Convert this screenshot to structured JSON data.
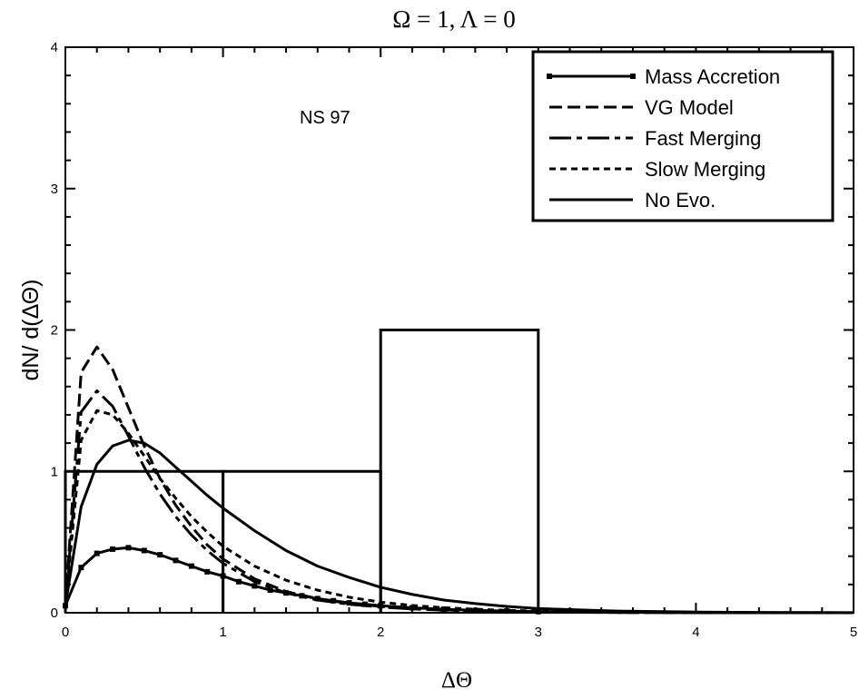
{
  "chart_data": {
    "type": "line",
    "title": "Ω = 1, Λ = 0",
    "xlabel": "ΔΘ",
    "ylabel": "dN/ d(ΔΘ)",
    "annotation": "NS 97",
    "xlim": [
      0,
      5
    ],
    "ylim": [
      0,
      4
    ],
    "x_ticks": [
      "0",
      "1",
      "2",
      "3",
      "4",
      "5"
    ],
    "y_ticks": [
      "0",
      "1",
      "2",
      "3",
      "4"
    ],
    "grid": false,
    "legend_position": "top-right",
    "series": [
      {
        "name": "Mass Accretion",
        "style": "solid-square-markers",
        "x": [
          0,
          0.1,
          0.2,
          0.3,
          0.4,
          0.5,
          0.6,
          0.7,
          0.8,
          0.9,
          1.0,
          1.1,
          1.2,
          1.3,
          1.4,
          1.5,
          1.6,
          1.7,
          1.8,
          1.9,
          2.0,
          2.2,
          2.4,
          2.6,
          2.8,
          3.0,
          3.5,
          4.0,
          4.5,
          5.0
        ],
        "y": [
          0.05,
          0.32,
          0.42,
          0.45,
          0.46,
          0.44,
          0.41,
          0.37,
          0.33,
          0.29,
          0.26,
          0.22,
          0.19,
          0.16,
          0.14,
          0.12,
          0.1,
          0.085,
          0.07,
          0.06,
          0.05,
          0.035,
          0.025,
          0.017,
          0.012,
          0.008,
          0.003,
          0.001,
          0.0005,
          0.0002
        ]
      },
      {
        "name": "VG Model",
        "style": "dashed",
        "x": [
          0,
          0.1,
          0.2,
          0.3,
          0.4,
          0.5,
          0.6,
          0.7,
          0.8,
          0.9,
          1.0,
          1.2,
          1.4,
          1.6,
          1.8,
          2.0,
          2.2,
          2.4,
          2.6,
          2.8,
          3.0,
          3.5,
          4.0,
          4.5,
          5.0
        ],
        "y": [
          0.05,
          1.7,
          1.88,
          1.72,
          1.45,
          1.18,
          0.95,
          0.76,
          0.61,
          0.48,
          0.38,
          0.24,
          0.15,
          0.1,
          0.065,
          0.045,
          0.03,
          0.02,
          0.013,
          0.009,
          0.006,
          0.002,
          0.001,
          0.0003,
          0.0001
        ]
      },
      {
        "name": "Fast Merging",
        "style": "dash-dot",
        "x": [
          0,
          0.1,
          0.2,
          0.3,
          0.4,
          0.5,
          0.6,
          0.7,
          0.8,
          0.9,
          1.0,
          1.2,
          1.4,
          1.6,
          1.8,
          2.0,
          2.2,
          2.4,
          2.6,
          2.8,
          3.0,
          3.5,
          4.0,
          4.5,
          5.0
        ],
        "y": [
          0.05,
          1.42,
          1.57,
          1.46,
          1.25,
          1.03,
          0.84,
          0.68,
          0.55,
          0.44,
          0.35,
          0.22,
          0.14,
          0.09,
          0.06,
          0.04,
          0.027,
          0.018,
          0.012,
          0.008,
          0.005,
          0.002,
          0.0008,
          0.0003,
          0.0001
        ]
      },
      {
        "name": "Slow Merging",
        "style": "short-dashed",
        "x": [
          0,
          0.1,
          0.2,
          0.3,
          0.4,
          0.5,
          0.6,
          0.7,
          0.8,
          0.9,
          1.0,
          1.2,
          1.4,
          1.6,
          1.8,
          2.0,
          2.2,
          2.4,
          2.6,
          2.8,
          3.0,
          3.5,
          4.0,
          4.5,
          5.0
        ],
        "y": [
          0.05,
          1.22,
          1.43,
          1.4,
          1.27,
          1.11,
          0.95,
          0.81,
          0.68,
          0.57,
          0.47,
          0.33,
          0.23,
          0.16,
          0.11,
          0.075,
          0.052,
          0.036,
          0.025,
          0.017,
          0.012,
          0.005,
          0.002,
          0.0008,
          0.0003
        ]
      },
      {
        "name": "No Evo.",
        "style": "solid",
        "x": [
          0,
          0.1,
          0.2,
          0.3,
          0.4,
          0.5,
          0.6,
          0.7,
          0.8,
          0.9,
          1.0,
          1.2,
          1.4,
          1.6,
          1.8,
          2.0,
          2.2,
          2.4,
          2.6,
          2.8,
          3.0,
          3.5,
          4.0,
          4.5,
          5.0
        ],
        "y": [
          0.05,
          0.75,
          1.05,
          1.18,
          1.22,
          1.2,
          1.13,
          1.03,
          0.93,
          0.83,
          0.74,
          0.58,
          0.44,
          0.33,
          0.25,
          0.18,
          0.13,
          0.09,
          0.065,
          0.045,
          0.03,
          0.012,
          0.005,
          0.002,
          0.0008
        ]
      }
    ],
    "histogram": {
      "bins": [
        [
          0,
          1
        ],
        [
          1,
          2
        ],
        [
          2,
          3
        ]
      ],
      "values": [
        1,
        1,
        2
      ]
    }
  }
}
